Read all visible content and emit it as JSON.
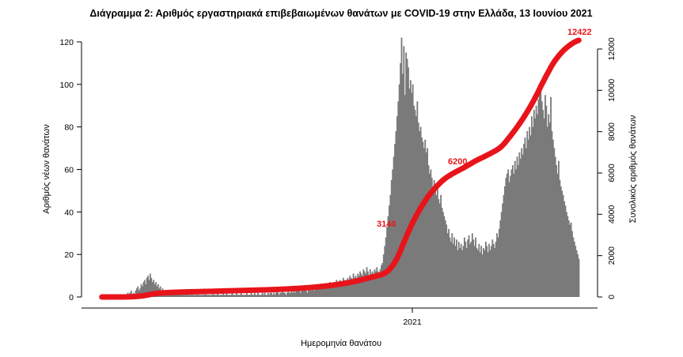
{
  "chart_data": {
    "type": "bar",
    "title": "Διάγραμμα 2: Αριθμός εργαστηριακά επιβεβαιωμένων θανάτων με COVID-19 στην Ελλάδα, 13 Ιουνίου 2021",
    "xlabel": "Ημερομηνία θανάτου",
    "ylabel": "Αριθμός νέων θανάτων",
    "y2label": "Συνολικός αριθμός θανάτων",
    "ylim": [
      0,
      120
    ],
    "y2lim": [
      0,
      12000
    ],
    "y_ticks": [
      0,
      20,
      40,
      60,
      80,
      100,
      120
    ],
    "y2_ticks": [
      0,
      2000,
      4000,
      6000,
      8000,
      10000,
      12000
    ],
    "x_tick_label": "2021",
    "bar_color": "#7a7a7a",
    "line_color": "#e8141b",
    "series": [
      {
        "name": "Αριθμός νέων θανάτων",
        "type": "bar",
        "values": [
          0,
          0,
          0,
          0,
          0,
          0,
          0,
          0,
          0,
          0,
          0,
          0,
          0,
          0,
          0,
          0,
          0,
          0,
          0,
          1,
          1,
          0,
          1,
          2,
          1,
          2,
          3,
          1,
          2,
          1,
          3,
          4,
          5,
          3,
          4,
          6,
          5,
          7,
          8,
          6,
          9,
          10,
          8,
          11,
          9,
          7,
          8,
          6,
          7,
          5,
          6,
          4,
          5,
          3,
          4,
          3,
          2,
          3,
          2,
          3,
          2,
          1,
          2,
          3,
          2,
          1,
          2,
          1,
          2,
          1,
          2,
          1,
          1,
          2,
          1,
          1,
          2,
          1,
          1,
          1,
          2,
          1,
          1,
          1,
          1,
          2,
          1,
          1,
          1,
          1,
          1,
          1,
          2,
          1,
          1,
          1,
          1,
          1,
          1,
          2,
          1,
          1,
          1,
          2,
          1,
          1,
          1,
          1,
          2,
          1,
          1,
          2,
          1,
          1,
          1,
          1,
          2,
          1,
          1,
          1,
          2,
          1,
          1,
          1,
          2,
          1,
          1,
          1,
          1,
          2,
          1,
          1,
          1,
          2,
          1,
          1,
          2,
          1,
          1,
          2,
          1,
          1,
          1,
          2,
          1,
          2,
          1,
          1,
          2,
          1,
          2,
          2,
          1,
          2,
          1,
          2,
          3,
          2,
          1,
          2,
          2,
          3,
          2,
          2,
          1,
          2,
          3,
          2,
          2,
          3,
          2,
          3,
          2,
          3,
          3,
          4,
          3,
          2,
          3,
          4,
          3,
          4,
          3,
          2,
          3,
          4,
          3,
          4,
          5,
          3,
          4,
          5,
          4,
          6,
          4,
          5,
          4,
          5,
          6,
          5,
          4,
          6,
          5,
          7,
          5,
          6,
          5,
          7,
          6,
          8,
          7,
          6,
          8,
          7,
          6,
          9,
          8,
          7,
          8,
          9,
          7,
          10,
          9,
          8,
          11,
          9,
          10,
          9,
          11,
          10,
          12,
          11,
          10,
          13,
          12,
          11,
          14,
          12,
          10,
          13,
          11,
          12,
          10,
          13,
          12,
          14,
          12,
          11,
          13,
          15,
          16,
          20,
          24,
          28,
          33,
          38,
          43,
          48,
          55,
          60,
          66,
          72,
          78,
          85,
          92,
          100,
          110,
          122,
          105,
          118,
          95,
          115,
          112,
          108,
          98,
          102,
          96,
          100,
          90,
          88,
          85,
          92,
          82,
          78,
          80,
          75,
          73,
          70,
          74,
          68,
          70,
          62,
          58,
          60,
          56,
          52,
          55,
          50,
          48,
          52,
          46,
          44,
          48,
          42,
          40,
          38,
          36,
          34,
          30,
          32,
          28,
          26,
          30,
          25,
          28,
          24,
          27,
          22,
          26,
          23,
          25,
          22,
          24,
          28,
          26,
          23,
          27,
          29,
          25,
          26,
          30,
          27,
          24,
          28,
          23,
          22,
          25,
          21,
          24,
          20,
          23,
          22,
          26,
          24,
          21,
          25,
          22,
          24,
          27,
          25,
          23,
          26,
          30,
          28,
          32,
          36,
          40,
          44,
          48,
          52,
          56,
          58,
          60,
          54,
          57,
          60,
          62,
          58,
          64,
          60,
          66,
          62,
          68,
          65,
          70,
          67,
          72,
          75,
          70,
          78,
          74,
          80,
          76,
          85,
          80,
          88,
          84,
          90,
          86,
          93,
          97,
          100,
          92,
          88,
          84,
          95,
          90,
          80,
          86,
          82,
          94,
          78,
          74,
          70,
          66,
          62,
          58,
          64,
          55,
          52,
          50,
          48,
          45,
          43,
          40,
          38,
          36,
          34,
          35,
          31,
          28,
          26,
          24,
          22,
          20,
          18
        ]
      },
      {
        "name": "Συνολικός αριθμός θανάτων",
        "type": "line",
        "annotations": [
          "3140",
          "6200",
          "12422"
        ]
      }
    ],
    "grid": false
  }
}
